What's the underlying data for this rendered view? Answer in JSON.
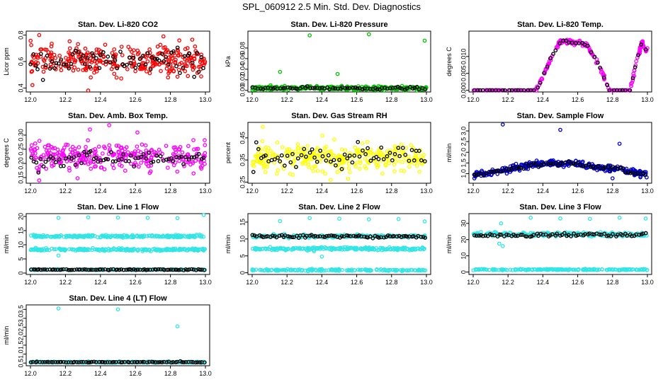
{
  "page": {
    "title": "SPL_060912  2.5 Min. Std. Dev. Diagnostics"
  },
  "chart_data": [
    {
      "type": "scatter",
      "title": "Stan. Dev. Li-820 CO2",
      "ylabel": "Licor ppm",
      "color": "#ff0000",
      "xlim": [
        12.0,
        13.0
      ],
      "xticks": [
        12.0,
        12.2,
        12.4,
        12.6,
        12.8,
        13.0
      ],
      "ylim": [
        0.37,
        0.83
      ],
      "yticks": [
        0.4,
        0.6,
        0.8
      ],
      "bands": [
        {
          "center": 0.61,
          "spread": 0.09,
          "count": 320
        }
      ],
      "black_band": {
        "center": 0.6,
        "spread": 0.08,
        "count": 75
      },
      "outliers": [
        {
          "x": 12.33,
          "y": 0.38
        },
        {
          "x": 12.05,
          "y": 0.8
        },
        {
          "x": 12.76,
          "y": 0.79
        }
      ]
    },
    {
      "type": "scatter",
      "title": "Stan. Dev. Li-820 Pressure",
      "ylabel": "kPa",
      "color": "#00c000",
      "xlim": [
        12.0,
        13.0
      ],
      "xticks": [
        12.0,
        12.2,
        12.4,
        12.6,
        12.8,
        13.0
      ],
      "ylim": [
        -0.003,
        0.112
      ],
      "yticks": [
        0.0,
        0.02,
        0.04,
        0.06,
        0.08
      ],
      "bands": [
        {
          "center": 0.004,
          "spread": 0.003,
          "count": 300
        }
      ],
      "black_band": {
        "center": 0.004,
        "spread": 0.002,
        "count": 70
      },
      "outliers": [
        {
          "x": 12.33,
          "y": 0.104
        },
        {
          "x": 12.67,
          "y": 0.106
        },
        {
          "x": 12.99,
          "y": 0.094
        },
        {
          "x": 12.16,
          "y": 0.035
        },
        {
          "x": 12.49,
          "y": 0.031
        }
      ]
    },
    {
      "type": "scatter",
      "title": "Stan. Dev. Li-820 Temp.",
      "ylabel": "degrees C",
      "color": "#ff00ff",
      "xlim": [
        12.0,
        13.0
      ],
      "xticks": [
        12.0,
        12.2,
        12.4,
        12.6,
        12.8,
        13.0
      ],
      "ylim": [
        -0.0005,
        0.0175
      ],
      "yticks": [
        0.0,
        0.005,
        0.01
      ],
      "profile": [
        [
          12.0,
          0.0
        ],
        [
          12.3,
          0.0
        ],
        [
          12.36,
          0.0
        ],
        [
          12.4,
          0.004
        ],
        [
          12.45,
          0.01
        ],
        [
          12.5,
          0.0145
        ],
        [
          12.6,
          0.014
        ],
        [
          12.65,
          0.0135
        ],
        [
          12.72,
          0.008
        ],
        [
          12.78,
          0.0
        ],
        [
          12.9,
          0.0
        ],
        [
          12.94,
          0.009
        ],
        [
          12.97,
          0.0145
        ],
        [
          12.99,
          0.012
        ]
      ],
      "count": 300,
      "black_count": 55
    },
    {
      "type": "scatter",
      "title": "Stan. Dev. Amb. Box Temp.",
      "ylabel": "degrees C",
      "color": "#ff00ff",
      "xlim": [
        12.0,
        13.0
      ],
      "xticks": [
        12.0,
        12.2,
        12.4,
        12.6,
        12.8,
        13.0
      ],
      "ylim": [
        0.13,
        0.345
      ],
      "yticks": [
        0.15,
        0.2,
        0.25,
        0.3
      ],
      "bands": [
        {
          "center": 0.225,
          "spread": 0.04,
          "count": 320
        }
      ],
      "black_band": {
        "center": 0.215,
        "spread": 0.025,
        "count": 70
      },
      "outliers": [
        {
          "x": 12.45,
          "y": 0.335
        },
        {
          "x": 12.34,
          "y": 0.32
        },
        {
          "x": 12.05,
          "y": 0.14
        }
      ]
    },
    {
      "type": "scatter",
      "title": "Stan. Dev. Gas Stream RH",
      "ylabel": "percent",
      "color": "#ffff00",
      "xlim": [
        12.0,
        13.0
      ],
      "xticks": [
        12.0,
        12.2,
        12.4,
        12.6,
        12.8,
        13.0
      ],
      "ylim": [
        0.245,
        0.52
      ],
      "yticks": [
        0.25,
        0.35,
        0.45
      ],
      "bands": [
        {
          "center": 0.36,
          "spread": 0.05,
          "count": 320
        }
      ],
      "black_band": {
        "center": 0.36,
        "spread": 0.04,
        "count": 65
      },
      "outliers": [
        {
          "x": 12.06,
          "y": 0.5
        },
        {
          "x": 12.45,
          "y": 0.26
        },
        {
          "x": 12.55,
          "y": 0.265
        }
      ]
    },
    {
      "type": "scatter",
      "title": "Stan. Dev. Sample Flow",
      "ylabel": "ml/min",
      "color": "#0000cc",
      "xlim": [
        12.0,
        13.0
      ],
      "xticks": [
        12.0,
        12.2,
        12.4,
        12.6,
        12.8,
        13.0
      ],
      "ylim": [
        0.55,
        3.4
      ],
      "yticks": [
        1.0,
        1.5,
        2.0,
        2.5,
        3.0
      ],
      "profile": [
        [
          12.0,
          0.95
        ],
        [
          12.1,
          1.05
        ],
        [
          12.2,
          1.2
        ],
        [
          12.3,
          1.35
        ],
        [
          12.45,
          1.5
        ],
        [
          12.6,
          1.45
        ],
        [
          12.7,
          1.3
        ],
        [
          12.85,
          1.2
        ],
        [
          12.95,
          1.0
        ],
        [
          13.0,
          0.9
        ]
      ],
      "spread": 0.07,
      "count": 340,
      "black_count": 70,
      "outliers": [
        {
          "x": 12.17,
          "y": 3.3
        },
        {
          "x": 12.5,
          "y": 3.05
        },
        {
          "x": 12.84,
          "y": 2.4
        },
        {
          "x": 12.8,
          "y": 0.78
        }
      ]
    },
    {
      "type": "scatter",
      "title": "Stan. Dev. Line 1 Flow",
      "ylabel": "ml/min",
      "color": "#33e5e5",
      "xlim": [
        12.0,
        13.0
      ],
      "xticks": [
        12.0,
        12.2,
        12.4,
        12.6,
        12.8,
        13.0
      ],
      "ylim": [
        -0.5,
        21
      ],
      "yticks": [
        0,
        5,
        10,
        15,
        20
      ],
      "bands": [
        {
          "center": 13.0,
          "spread": 0.35,
          "count": 220
        },
        {
          "center": 8.3,
          "spread": 0.35,
          "count": 220
        },
        {
          "center": 1.2,
          "spread": 0.15,
          "count": 120
        }
      ],
      "black_band": {
        "center": 1.2,
        "spread": 0.12,
        "count": 85
      },
      "outliers": [
        {
          "x": 12.16,
          "y": 19.5
        },
        {
          "x": 12.33,
          "y": 19.7
        },
        {
          "x": 12.5,
          "y": 19.6
        },
        {
          "x": 12.67,
          "y": 19.5
        },
        {
          "x": 12.84,
          "y": 19.4
        },
        {
          "x": 12.99,
          "y": 21.0
        },
        {
          "x": 12.16,
          "y": 6.2
        }
      ]
    },
    {
      "type": "scatter",
      "title": "Stan. Dev. Line 2 Flow",
      "ylabel": "ml/min",
      "color": "#33e5e5",
      "xlim": [
        12.0,
        13.0
      ],
      "xticks": [
        12.0,
        12.2,
        12.4,
        12.6,
        12.8,
        13.0
      ],
      "ylim": [
        -0.5,
        17.5
      ],
      "yticks": [
        0,
        5,
        10,
        15
      ],
      "bands": [
        {
          "center": 10.8,
          "spread": 0.35,
          "count": 220
        },
        {
          "center": 7.1,
          "spread": 0.35,
          "count": 220
        },
        {
          "center": 0.8,
          "spread": 0.2,
          "count": 160
        }
      ],
      "black_band": {
        "center": 10.8,
        "spread": 0.4,
        "count": 80
      },
      "outliers": [
        {
          "x": 12.16,
          "y": 15.3
        },
        {
          "x": 12.33,
          "y": 16.2
        },
        {
          "x": 12.5,
          "y": 16.0
        },
        {
          "x": 12.67,
          "y": 15.8
        },
        {
          "x": 12.84,
          "y": 15.9
        },
        {
          "x": 12.99,
          "y": 15.2
        },
        {
          "x": 12.4,
          "y": 4.8
        }
      ]
    },
    {
      "type": "scatter",
      "title": "Stan. Dev. Line 3 Flow",
      "ylabel": "ml/min",
      "color": "#33e5e5",
      "xlim": [
        12.0,
        13.0
      ],
      "xticks": [
        12.0,
        12.2,
        12.4,
        12.6,
        12.8,
        13.0
      ],
      "ylim": [
        -1.5,
        36
      ],
      "yticks": [
        0,
        10,
        20,
        30
      ],
      "bands": [
        {
          "center": 23.2,
          "spread": 0.9,
          "count": 280
        },
        {
          "center": 1.5,
          "spread": 0.3,
          "count": 200
        }
      ],
      "black_band": {
        "center": 22.8,
        "spread": 0.8,
        "count": 75
      },
      "outliers": [
        {
          "x": 12.16,
          "y": 30.0
        },
        {
          "x": 12.33,
          "y": 33.5
        },
        {
          "x": 12.5,
          "y": 33.0
        },
        {
          "x": 12.67,
          "y": 32.8
        },
        {
          "x": 12.84,
          "y": 33.5
        },
        {
          "x": 12.99,
          "y": 33.0
        },
        {
          "x": 12.15,
          "y": 17.5
        },
        {
          "x": 12.17,
          "y": 16.0
        }
      ]
    },
    {
      "type": "scatter",
      "title": "Stan. Dev. Line 4 (LT) Flow",
      "ylabel": "ml/min",
      "color": "#33e5e5",
      "xlim": [
        12.0,
        13.0
      ],
      "xticks": [
        12.0,
        12.2,
        12.4,
        12.6,
        12.8,
        13.0
      ],
      "ylim": [
        0.35,
        3.75
      ],
      "yticks": [
        0.5,
        1.0,
        1.5,
        2.0,
        2.5,
        3.0,
        3.5
      ],
      "bands": [
        {
          "center": 0.55,
          "spread": 0.025,
          "count": 240
        }
      ],
      "black_band": {
        "center": 0.55,
        "spread": 0.02,
        "count": 80
      },
      "outliers": [
        {
          "x": 12.16,
          "y": 3.55
        },
        {
          "x": 12.5,
          "y": 3.5
        },
        {
          "x": 12.84,
          "y": 2.55
        }
      ]
    }
  ]
}
